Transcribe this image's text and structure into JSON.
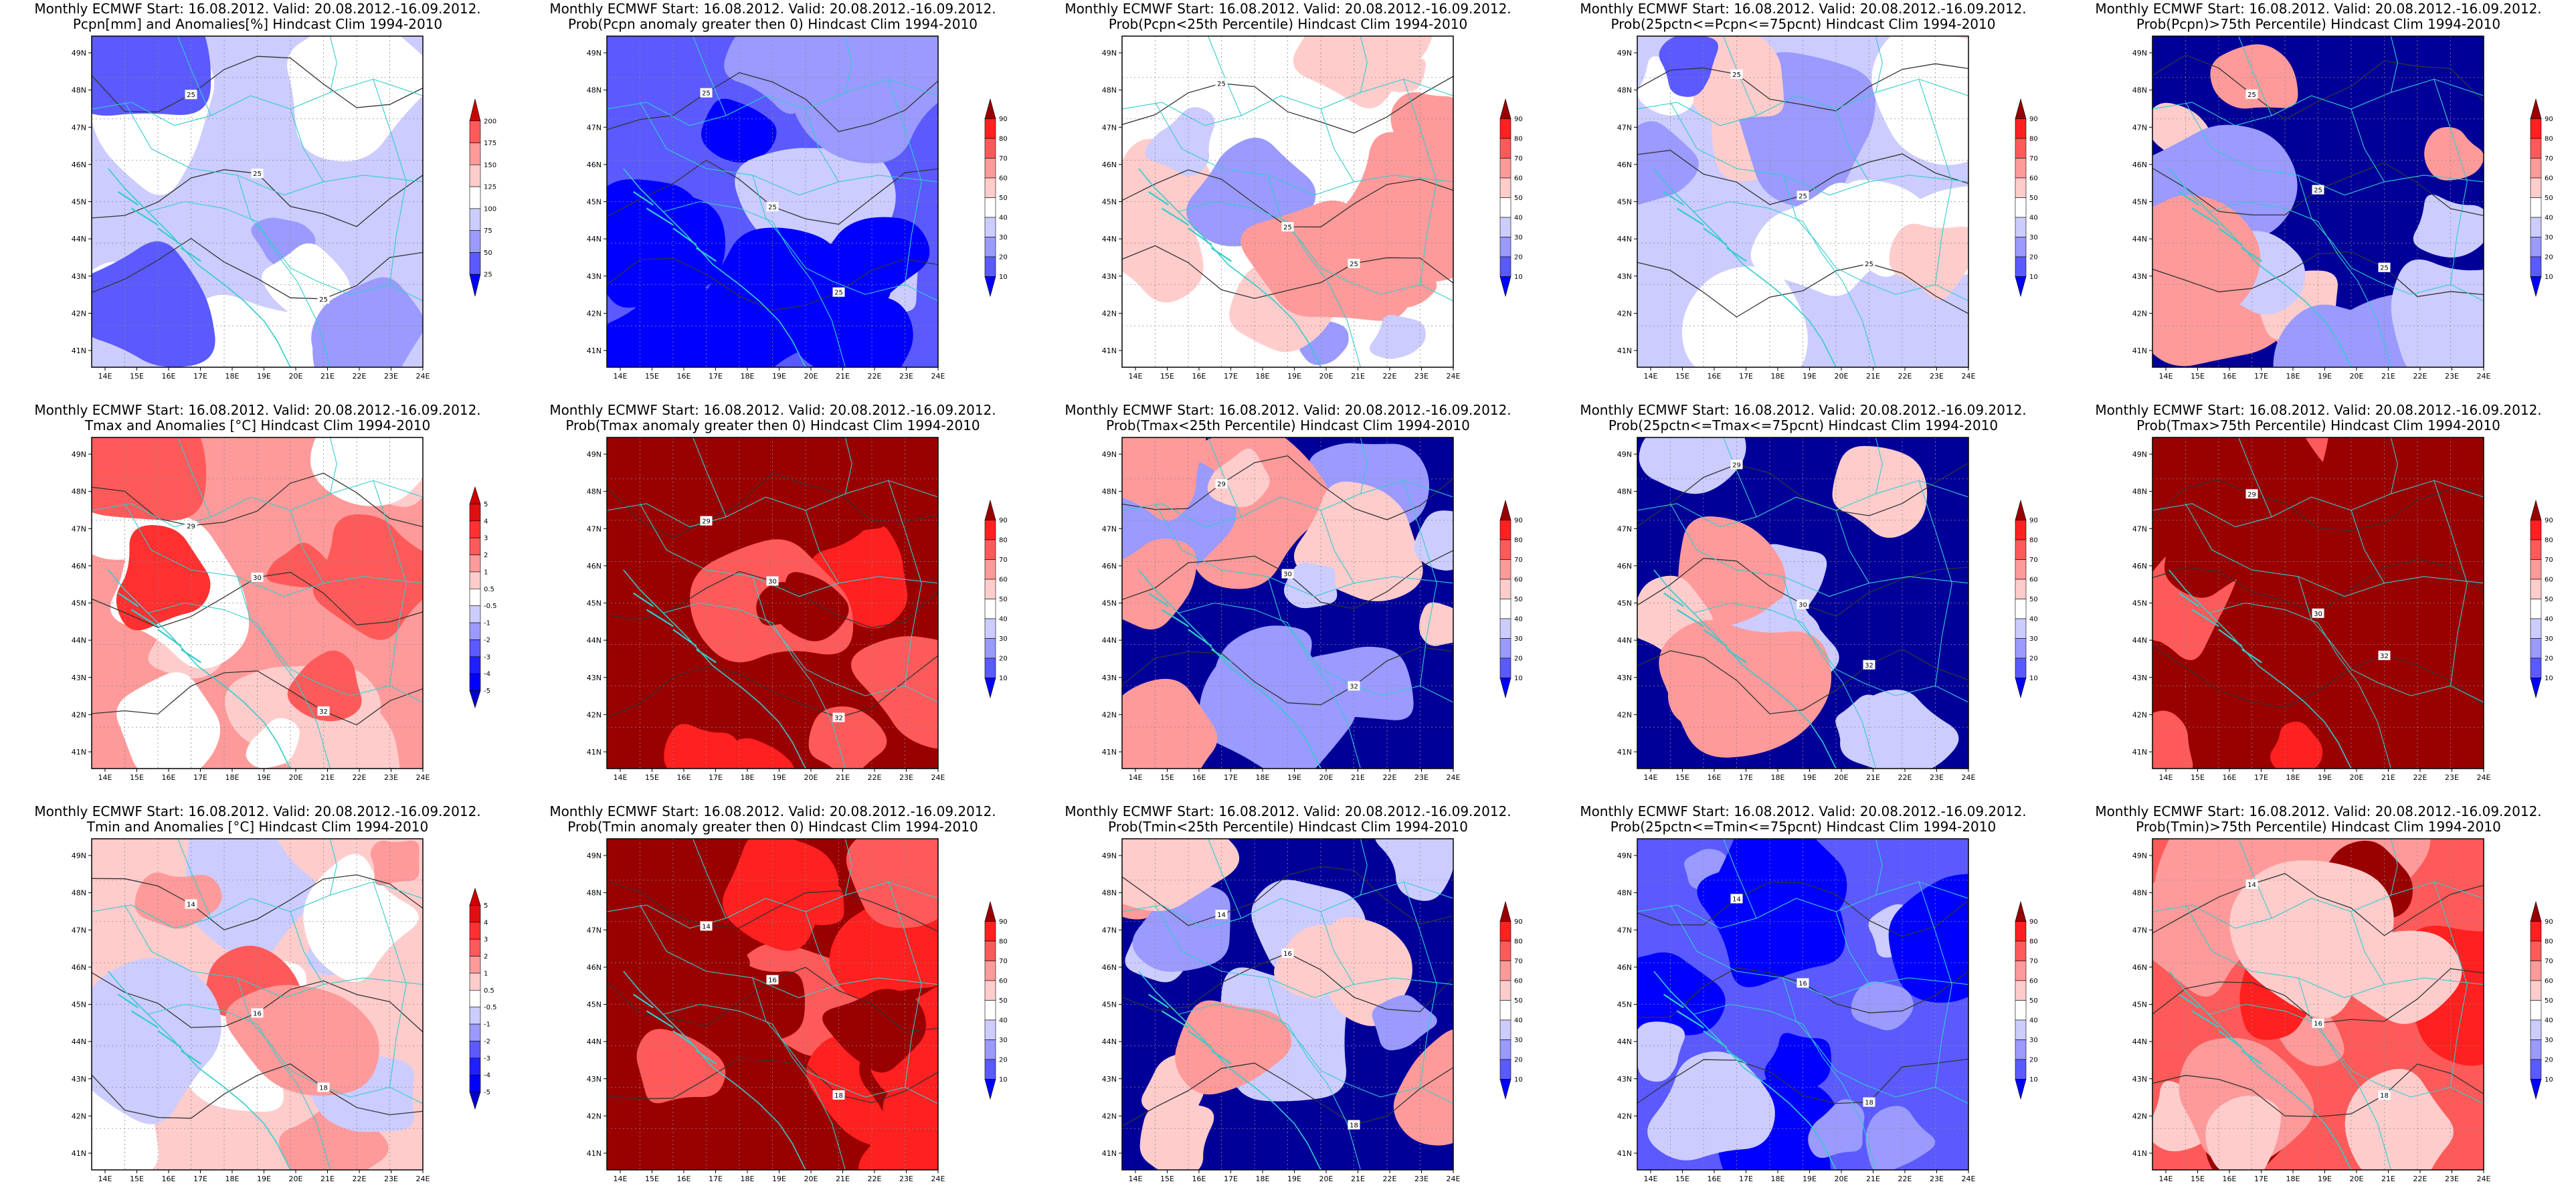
{
  "figure": {
    "header": "Monthly ECMWF Start: 16.08.2012. Valid: 20.08.2012.-16.09.2012.",
    "lon_ticks": [
      "14E",
      "15E",
      "16E",
      "17E",
      "18E",
      "19E",
      "20E",
      "21E",
      "22E",
      "23E",
      "24E"
    ],
    "lat_ticks": [
      "41N",
      "42N",
      "43N",
      "44N",
      "45N",
      "46N",
      "47N",
      "48N",
      "49N"
    ],
    "colors": {
      "prob_scale": [
        "#000099",
        "#0000ff",
        "#5a5aff",
        "#9a9aff",
        "#ccccff",
        "#ffffff",
        "#ffcccc",
        "#ff9a9a",
        "#ff5a5a",
        "#ff2020",
        "#990000"
      ],
      "coast": "#33cccc",
      "contour": "#333333"
    }
  },
  "panels": [
    {
      "id": "pcpn-anom",
      "subtitle": "Pcpn[mm] and Anomalies[%] Hindcast Clim 1994-2010",
      "scale": "pcpn",
      "base": "#ccccff",
      "contours": [
        "25",
        "25",
        "25"
      ]
    },
    {
      "id": "pcpn-gt0",
      "subtitle": "Prob(Pcpn anomaly greater then 0) Hindcast Clim 1994-2010",
      "scale": "prob",
      "base": "#5a5aff",
      "contours": [
        "25",
        "25",
        "25"
      ]
    },
    {
      "id": "pcpn-lt25",
      "subtitle": "Prob(Pcpn<25th Percentile) Hindcast Clim 1994-2010",
      "scale": "prob",
      "base": "#ffffff",
      "contours": [
        "25",
        "25",
        "25"
      ]
    },
    {
      "id": "pcpn-mid",
      "subtitle": "Prob(25pctn<=Pcpn<=75pcnt) Hindcast Clim 1994-2010",
      "scale": "prob",
      "base": "#ccccff",
      "contours": [
        "25",
        "25",
        "25"
      ]
    },
    {
      "id": "pcpn-gt75",
      "subtitle": "Prob(Pcpn)>75th Percentile) Hindcast Clim 1994-2010",
      "scale": "prob",
      "base": "#000099",
      "contours": [
        "25",
        "25",
        "25"
      ]
    },
    {
      "id": "tmax-anom",
      "subtitle": "Tmax and Anomalies [°C] Hindcast Clim 1994-2010",
      "scale": "temp",
      "base": "#ff9a9a",
      "contours": [
        "29",
        "30",
        "32"
      ]
    },
    {
      "id": "tmax-gt0",
      "subtitle": "Prob(Tmax anomaly greater then 0) Hindcast Clim 1994-2010",
      "scale": "prob",
      "base": "#990000",
      "contours": [
        "29",
        "30",
        "32"
      ]
    },
    {
      "id": "tmax-lt25",
      "subtitle": "Prob(Tmax<25th Percentile) Hindcast Clim 1994-2010",
      "scale": "prob",
      "base": "#000099",
      "contours": [
        "29",
        "30",
        "32"
      ]
    },
    {
      "id": "tmax-mid",
      "subtitle": "Prob(25pctn<=Tmax<=75pcnt) Hindcast Clim 1994-2010",
      "scale": "prob",
      "base": "#000099",
      "contours": [
        "29",
        "30",
        "32"
      ]
    },
    {
      "id": "tmax-gt75",
      "subtitle": "Prob(Tmax>75th Percentile) Hindcast Clim 1994-2010",
      "scale": "prob",
      "base": "#990000",
      "contours": [
        "29",
        "30",
        "32"
      ]
    },
    {
      "id": "tmin-anom",
      "subtitle": "Tmin and Anomalies [°C] Hindcast Clim 1994-2010",
      "scale": "temp",
      "base": "#ffcccc",
      "contours": [
        "14",
        "16",
        "18"
      ]
    },
    {
      "id": "tmin-gt0",
      "subtitle": "Prob(Tmin anomaly greater then 0) Hindcast Clim 1994-2010",
      "scale": "prob",
      "base": "#990000",
      "contours": [
        "14",
        "16",
        "18"
      ]
    },
    {
      "id": "tmin-lt25",
      "subtitle": "Prob(Tmin<25th Percentile) Hindcast Clim 1994-2010",
      "scale": "prob",
      "base": "#000099",
      "contours": [
        "14",
        "16",
        "18"
      ]
    },
    {
      "id": "tmin-mid",
      "subtitle": "Prob(25pctn<=Tmin<=75pcnt) Hindcast Clim 1994-2010",
      "scale": "prob",
      "base": "#5a5aff",
      "contours": [
        "14",
        "16",
        "18"
      ]
    },
    {
      "id": "tmin-gt75",
      "subtitle": "Prob(Tmin)>75th Percentile) Hindcast Clim 1994-2010",
      "scale": "prob",
      "base": "#ff5a5a",
      "contours": [
        "14",
        "16",
        "18"
      ]
    }
  ],
  "scales": {
    "pcpn": {
      "labels": [
        "200",
        "175",
        "150",
        "125",
        "100",
        "75",
        "50",
        "25"
      ],
      "colors": [
        "#cc0000",
        "#ff5a5a",
        "#ff9a9a",
        "#ffcccc",
        "#ffffff",
        "#ccccff",
        "#9a9aff",
        "#5a5aff",
        "#0000ff"
      ]
    },
    "prob": {
      "labels": [
        "90",
        "80",
        "70",
        "60",
        "50",
        "40",
        "30",
        "20",
        "10"
      ],
      "colors": [
        "#990000",
        "#ff2020",
        "#ff5a5a",
        "#ff9a9a",
        "#ffcccc",
        "#ffffff",
        "#ccccff",
        "#9a9aff",
        "#5a5aff",
        "#0000ff"
      ]
    },
    "temp": {
      "labels": [
        "5",
        "4",
        "3",
        "2",
        "1",
        "0.5",
        "-0.5",
        "-1",
        "-2",
        "-3",
        "-4",
        "-5"
      ],
      "colors": [
        "#cc0000",
        "#e01010",
        "#ff3030",
        "#ff5a5a",
        "#ff9a9a",
        "#ffcccc",
        "#ffffff",
        "#ccccff",
        "#9a9aff",
        "#5a5aff",
        "#2020ff",
        "#0000ff",
        "#0000cc"
      ]
    }
  }
}
